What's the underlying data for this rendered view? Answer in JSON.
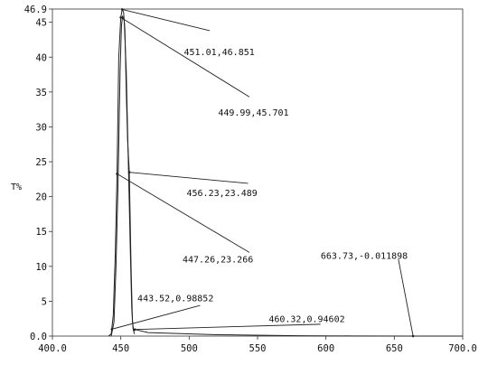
{
  "chart_data": {
    "type": "line",
    "ylabel": "T%",
    "xlim": [
      400,
      700
    ],
    "ylim": [
      0,
      46.9
    ],
    "x_ticks": [
      {
        "value": 400,
        "label": "400.0"
      },
      {
        "value": 450,
        "label": "450"
      },
      {
        "value": 500,
        "label": "500"
      },
      {
        "value": 550,
        "label": "550"
      },
      {
        "value": 600,
        "label": "600"
      },
      {
        "value": 650,
        "label": "650"
      },
      {
        "value": 700,
        "label": "700.0"
      }
    ],
    "y_ticks": [
      {
        "value": 0,
        "label": "0.0"
      },
      {
        "value": 5,
        "label": "5"
      },
      {
        "value": 10,
        "label": "10"
      },
      {
        "value": 15,
        "label": "15"
      },
      {
        "value": 20,
        "label": "20"
      },
      {
        "value": 25,
        "label": "25"
      },
      {
        "value": 30,
        "label": "30"
      },
      {
        "value": 35,
        "label": "35"
      },
      {
        "value": 40,
        "label": "40"
      },
      {
        "value": 45,
        "label": "45"
      },
      {
        "value": 46.9,
        "label": "46.9"
      }
    ],
    "grid": false,
    "series": [
      {
        "color": "#222222",
        "x": [
          441,
          443,
          444.5,
          446,
          447.26,
          448.5,
          449.99,
          451.01,
          452,
          453,
          454,
          455,
          456.23,
          457.5,
          458.5,
          459.5,
          460.32,
          470,
          520,
          580,
          620,
          662,
          663.73,
          700
        ],
        "y": [
          0.0,
          0.3,
          3.0,
          12.0,
          23.266,
          40.0,
          45.701,
          46.851,
          46.5,
          44.0,
          35.0,
          28.0,
          23.489,
          10.0,
          2.0,
          0.7,
          0.946,
          0.5,
          0.2,
          0.05,
          0.02,
          0.0,
          -0.012,
          0.0
        ]
      },
      {
        "color": "#222222",
        "x": [
          443.0,
          445.0,
          446.5,
          448.0,
          449.5,
          450.5,
          451.3,
          452.5,
          454.0,
          455.5,
          457.0,
          458.0,
          459.0,
          460.0
        ],
        "y": [
          0.0,
          2.0,
          10.0,
          22.0,
          38.0,
          44.5,
          45.9,
          45.2,
          38.0,
          25.0,
          12.0,
          4.0,
          1.0,
          0.3
        ]
      }
    ],
    "annotations": [
      {
        "label": "451.01,46.851",
        "x": 451.01,
        "y": 46.851,
        "text_x": 522,
        "text_y": 40.8,
        "end_x": 515,
        "end_y": 43.8
      },
      {
        "label": "449.99,45.701",
        "x": 449.99,
        "y": 45.701,
        "text_x": 547,
        "text_y": 32.1,
        "end_x": 544,
        "end_y": 34.3
      },
      {
        "label": "456.23,23.489",
        "x": 456.23,
        "y": 23.489,
        "text_x": 524,
        "text_y": 20.6,
        "end_x": 543,
        "end_y": 21.9
      },
      {
        "label": "447.26,23.266",
        "x": 447.26,
        "y": 23.266,
        "text_x": 521,
        "text_y": 11.1,
        "end_x": 544,
        "end_y": 12.0
      },
      {
        "label": "443.52,0.98852",
        "x": 443.52,
        "y": 0.98852,
        "text_x": 490,
        "text_y": 5.5,
        "end_x": 508,
        "end_y": 4.4
      },
      {
        "label": "460.32,0.94602",
        "x": 460.32,
        "y": 0.94602,
        "text_x": 586,
        "text_y": 2.5,
        "end_x": 596,
        "end_y": 1.7
      },
      {
        "label": "663.73,-0.011898",
        "x": 663.73,
        "y": -0.011898,
        "text_x": 628,
        "text_y": 11.6,
        "end_x": 653,
        "end_y": 11.0
      }
    ]
  }
}
